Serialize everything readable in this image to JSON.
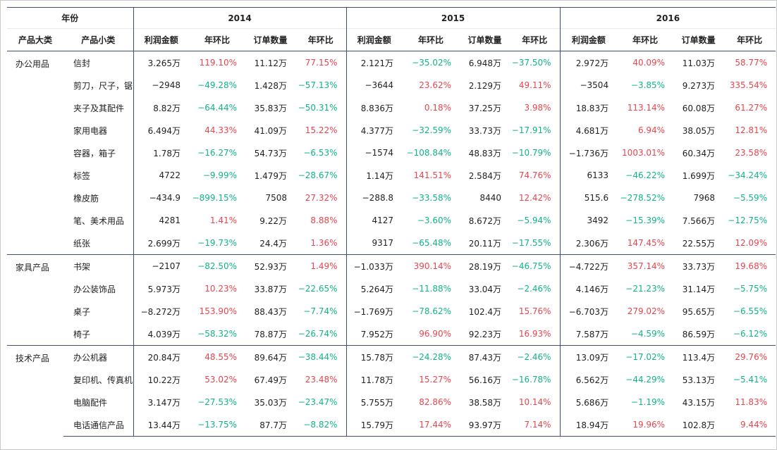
{
  "header": {
    "corner_label": "年份",
    "years": [
      "2014",
      "2015",
      "2016"
    ],
    "cat_label": "产品大类",
    "sub_label": "产品小类",
    "metric_labels": [
      "利润金额",
      "年环比",
      "订单数量",
      "年环比"
    ]
  },
  "colors": {
    "positive": "#e8464f",
    "negative": "#12b48a",
    "rule": "#3d4f73"
  },
  "groups": [
    {
      "category": "办公用品",
      "rows": [
        {
          "sub": "信封",
          "vals": [
            "3.265万",
            "119.10%",
            "11.12万",
            "77.15%",
            "2.121万",
            "−35.02%",
            "6.948万",
            "−37.50%",
            "2.972万",
            "40.09%",
            "11.03万",
            "58.77%"
          ]
        },
        {
          "sub": "剪刀，尺子，锯",
          "vals": [
            "−2948",
            "−49.28%",
            "1.428万",
            "−57.13%",
            "−3644",
            "23.62%",
            "2.129万",
            "49.11%",
            "−3504",
            "−3.85%",
            "9.273万",
            "335.54%"
          ]
        },
        {
          "sub": "夹子及其配件",
          "vals": [
            "8.82万",
            "−64.44%",
            "35.83万",
            "−50.31%",
            "8.836万",
            "0.18%",
            "37.25万",
            "3.98%",
            "18.83万",
            "113.14%",
            "60.08万",
            "61.27%"
          ]
        },
        {
          "sub": "家用电器",
          "vals": [
            "6.494万",
            "44.33%",
            "41.09万",
            "15.22%",
            "4.377万",
            "−32.59%",
            "33.73万",
            "−17.91%",
            "4.681万",
            "6.94%",
            "38.05万",
            "12.81%"
          ]
        },
        {
          "sub": "容器，箱子",
          "vals": [
            "1.78万",
            "−16.27%",
            "54.73万",
            "−6.53%",
            "−1574",
            "−108.84%",
            "48.83万",
            "−10.79%",
            "−1.736万",
            "1003.01%",
            "60.34万",
            "23.58%"
          ]
        },
        {
          "sub": "标签",
          "vals": [
            "4722",
            "−9.99%",
            "1.479万",
            "−28.67%",
            "1.14万",
            "141.51%",
            "2.584万",
            "74.76%",
            "6133",
            "−46.22%",
            "1.699万",
            "−34.24%"
          ]
        },
        {
          "sub": "橡皮筋",
          "vals": [
            "−434.9",
            "−899.15%",
            "7508",
            "27.32%",
            "−288.8",
            "−33.58%",
            "8440",
            "12.42%",
            "515.6",
            "−278.52%",
            "7968",
            "−5.59%"
          ]
        },
        {
          "sub": "笔、美术用品",
          "vals": [
            "4281",
            "1.41%",
            "9.22万",
            "8.88%",
            "4127",
            "−3.60%",
            "8.672万",
            "−5.94%",
            "3492",
            "−15.39%",
            "7.566万",
            "−12.75%"
          ]
        },
        {
          "sub": "纸张",
          "vals": [
            "2.699万",
            "−19.73%",
            "24.4万",
            "1.36%",
            "9317",
            "−65.48%",
            "20.11万",
            "−17.55%",
            "2.306万",
            "147.45%",
            "22.55万",
            "12.09%"
          ]
        }
      ]
    },
    {
      "category": "家具产品",
      "rows": [
        {
          "sub": "书架",
          "vals": [
            "−2107",
            "−82.50%",
            "52.93万",
            "1.49%",
            "−1.033万",
            "390.14%",
            "28.19万",
            "−46.75%",
            "−4.722万",
            "357.14%",
            "33.73万",
            "19.68%"
          ]
        },
        {
          "sub": "办公装饰品",
          "vals": [
            "5.973万",
            "10.23%",
            "33.87万",
            "−22.65%",
            "5.264万",
            "−11.88%",
            "33.04万",
            "−2.46%",
            "4.146万",
            "−21.23%",
            "31.14万",
            "−5.75%"
          ]
        },
        {
          "sub": "桌子",
          "vals": [
            "−8.272万",
            "153.90%",
            "88.43万",
            "−7.74%",
            "−1.769万",
            "−78.62%",
            "102.4万",
            "15.76%",
            "−6.703万",
            "279.02%",
            "95.65万",
            "−6.55%"
          ]
        },
        {
          "sub": "椅子",
          "vals": [
            "4.039万",
            "−58.32%",
            "78.87万",
            "−26.74%",
            "7.952万",
            "96.90%",
            "92.23万",
            "16.93%",
            "7.587万",
            "−4.59%",
            "86.59万",
            "−6.12%"
          ]
        }
      ]
    },
    {
      "category": "技术产品",
      "rows": [
        {
          "sub": "办公机器",
          "vals": [
            "20.84万",
            "48.55%",
            "89.64万",
            "−38.44%",
            "15.78万",
            "−24.28%",
            "87.43万",
            "−2.46%",
            "13.09万",
            "−17.02%",
            "113.4万",
            "29.76%"
          ]
        },
        {
          "sub": "复印机、传真机",
          "vals": [
            "10.22万",
            "53.02%",
            "67.49万",
            "23.48%",
            "11.78万",
            "15.27%",
            "56.16万",
            "−16.78%",
            "6.562万",
            "−44.29%",
            "53.13万",
            "−5.41%"
          ]
        },
        {
          "sub": "电脑配件",
          "vals": [
            "3.147万",
            "−27.53%",
            "35.03万",
            "−23.47%",
            "5.755万",
            "82.86%",
            "38.58万",
            "10.14%",
            "5.686万",
            "−1.19%",
            "43.15万",
            "11.83%"
          ]
        },
        {
          "sub": "电话通信产品",
          "vals": [
            "13.44万",
            "−13.75%",
            "87.7万",
            "−8.82%",
            "15.79万",
            "17.44%",
            "93.97万",
            "7.14%",
            "18.94万",
            "19.96%",
            "102.8万",
            "9.44%"
          ]
        }
      ]
    }
  ]
}
